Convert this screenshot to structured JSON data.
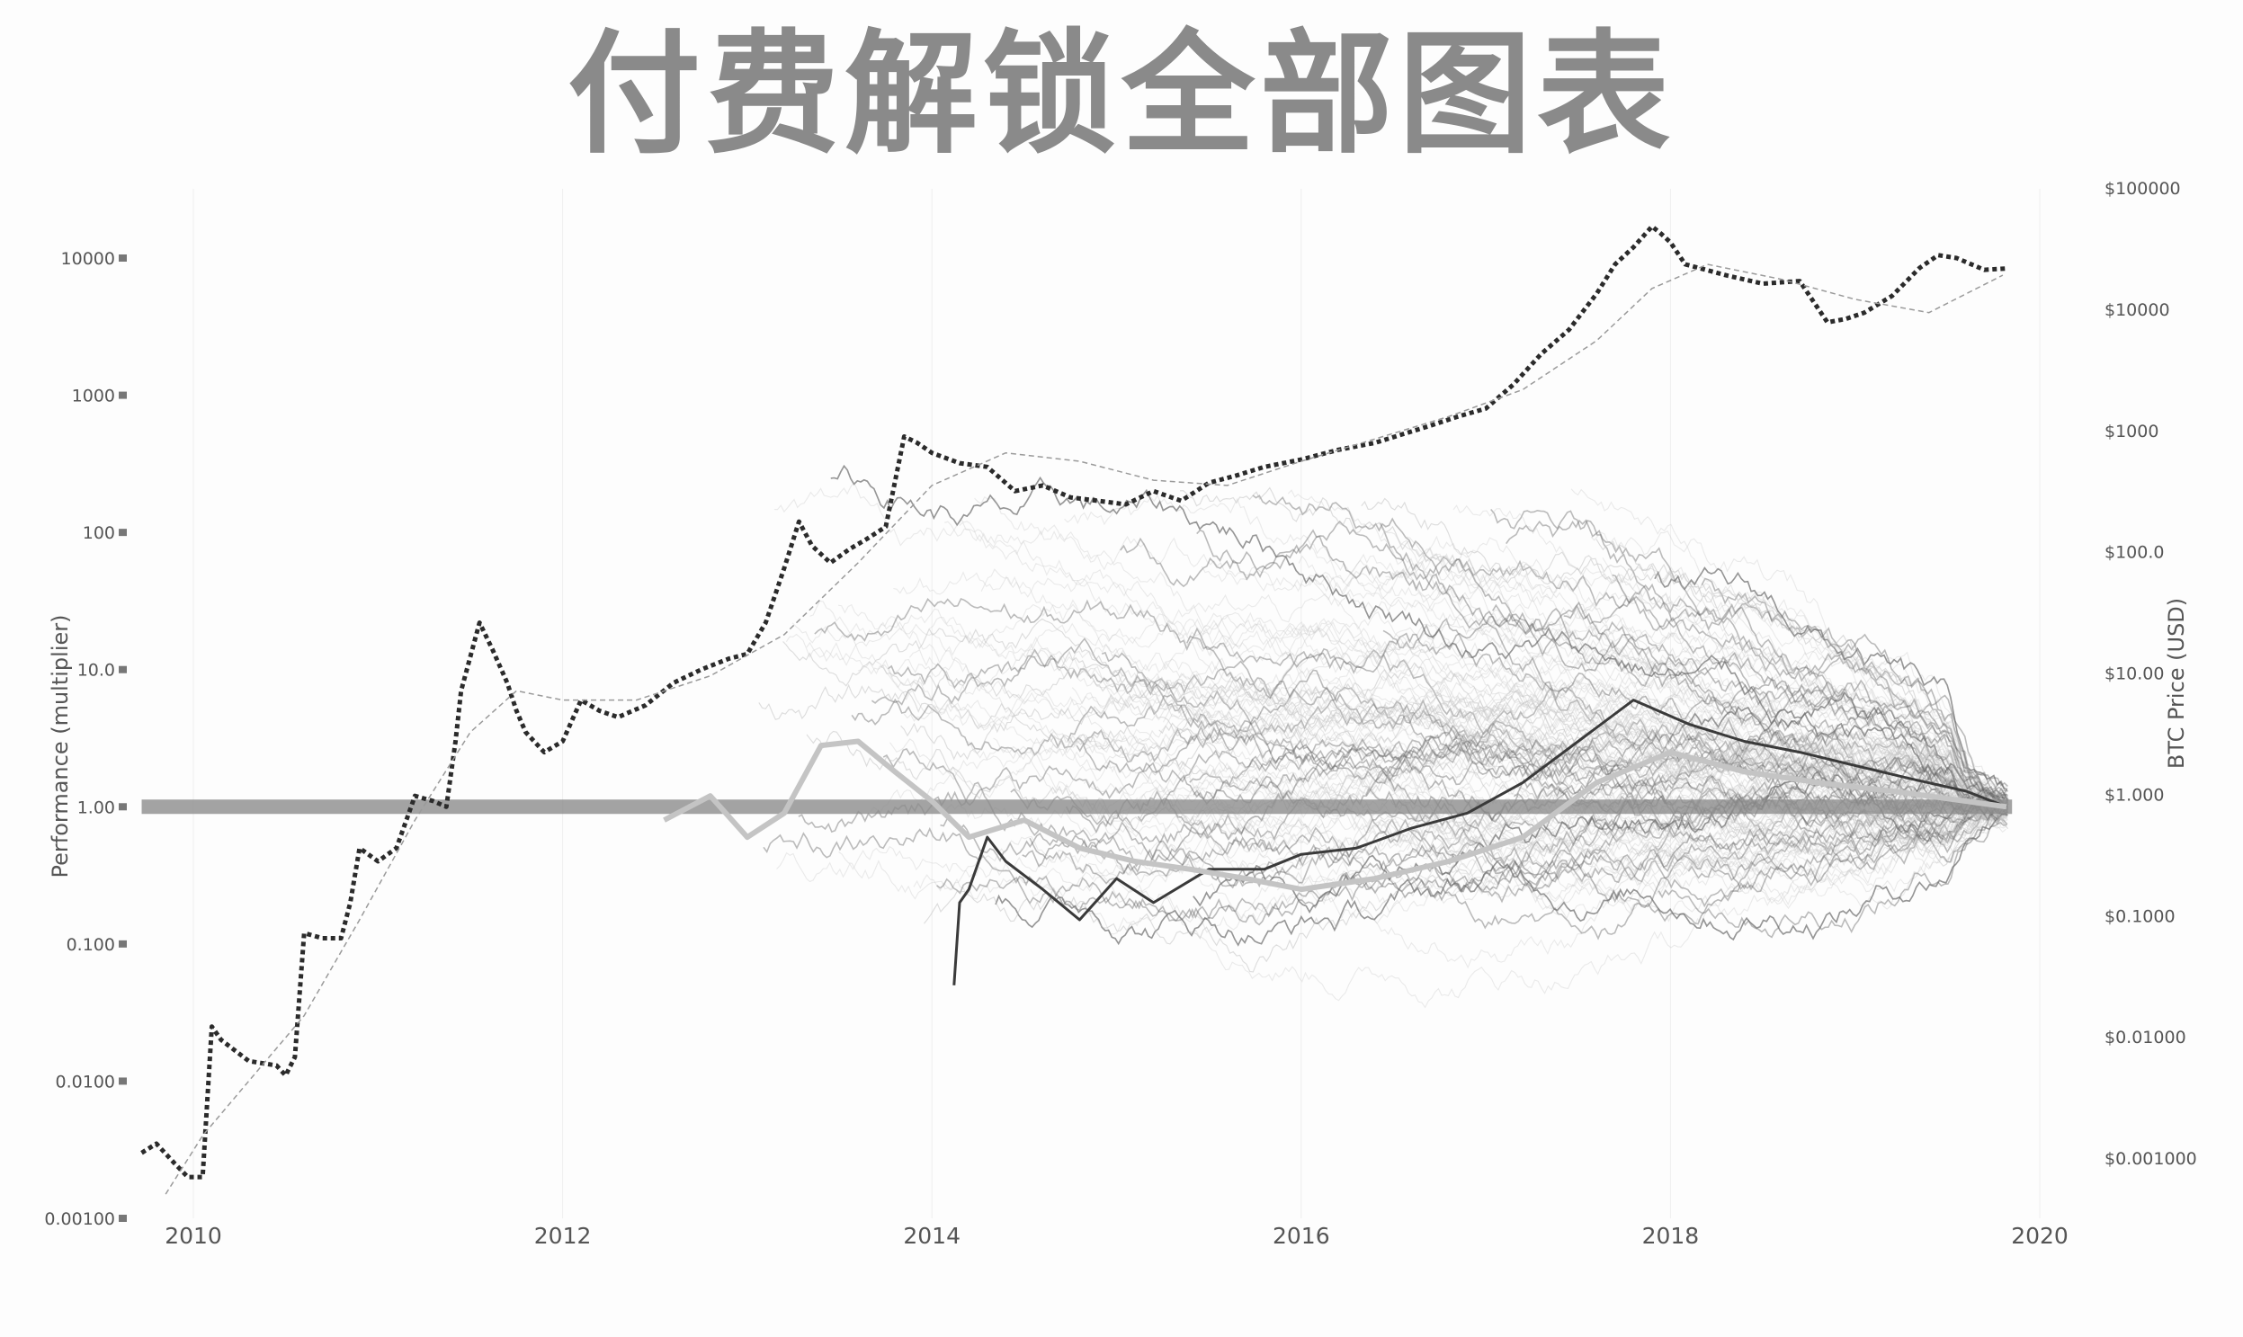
{
  "banner": "付费解锁全部图表",
  "colors": {
    "btc_price": "#2b2b2b",
    "btc_trend": "#9a9a9a",
    "baseline": "#8c8c8c",
    "altcoins_light": "#c6c6c6",
    "altcoins_dark": "#6a6a6a",
    "grid": "#eeeeee"
  },
  "chart_data": {
    "type": "line",
    "title": "",
    "xlabel": "",
    "ylabel": "Performance (multiplier)",
    "y2label": "BTC Price (USD)",
    "x_scale": "time",
    "y_scale": "log",
    "y2_scale": "log",
    "xlim": [
      2009.75,
      2019.9
    ],
    "ylim": [
      0.001,
      30000
    ],
    "y2lim": [
      0.0003,
      100000
    ],
    "grid": true,
    "legend": "none",
    "x_ticks": [
      "2010",
      "2012",
      "2014",
      "2016",
      "2018",
      "2020"
    ],
    "x_tick_values": [
      2010,
      2012,
      2014,
      2016,
      2018,
      2020
    ],
    "y_ticks": [
      "0.00100",
      "0.0100",
      "0.100",
      "1.00",
      "10.0",
      "100",
      "1000",
      "10000"
    ],
    "y_tick_values": [
      0.001,
      0.01,
      0.1,
      1,
      10,
      100,
      1000,
      10000
    ],
    "y2_ticks": [
      "$0.001000",
      "$0.01000",
      "$0.1000",
      "$1.000",
      "$10.00",
      "$100.0",
      "$1000",
      "$10000",
      "$100000"
    ],
    "y2_tick_values": [
      0.001,
      0.01,
      0.1,
      1,
      10,
      100,
      1000,
      10000,
      100000
    ],
    "baseline": {
      "y": 1,
      "x_start": 2009.72,
      "x_end": 2019.85
    },
    "series": [
      {
        "style": "dotted",
        "x": [
          2009.72,
          2009.8,
          2009.9,
          2009.97,
          2010.05,
          2010.1,
          2010.15,
          2010.3,
          2010.45,
          2010.5,
          2010.55,
          2010.6,
          2010.7,
          2010.8,
          2010.85,
          2010.9,
          2011.0,
          2011.1,
          2011.2,
          2011.3,
          2011.37,
          2011.42,
          2011.45,
          2011.55,
          2011.62,
          2011.7,
          2011.75,
          2011.8,
          2011.9,
          2012.0,
          2012.1,
          2012.2,
          2012.3,
          2012.45,
          2012.6,
          2012.75,
          2012.9,
          2013.0,
          2013.1,
          2013.2,
          2013.28,
          2013.35,
          2013.45,
          2013.55,
          2013.65,
          2013.75,
          2013.85,
          2013.92,
          2014.0,
          2014.15,
          2014.3,
          2014.45,
          2014.6,
          2014.75,
          2014.9,
          2015.05,
          2015.2,
          2015.35,
          2015.5,
          2015.65,
          2015.8,
          2016.0,
          2016.2,
          2016.4,
          2016.55,
          2016.7,
          2016.85,
          2017.0,
          2017.15,
          2017.3,
          2017.45,
          2017.6,
          2017.7,
          2017.8,
          2017.9,
          2017.95,
          2018.0,
          2018.08,
          2018.15,
          2018.3,
          2018.5,
          2018.7,
          2018.85,
          2018.95,
          2019.05,
          2019.2,
          2019.35,
          2019.45,
          2019.55,
          2019.7,
          2019.82
        ],
        "y": [
          0.003,
          0.0035,
          0.0025,
          0.002,
          0.002,
          0.025,
          0.02,
          0.014,
          0.013,
          0.011,
          0.015,
          0.12,
          0.11,
          0.11,
          0.2,
          0.5,
          0.4,
          0.5,
          1.2,
          1.1,
          1.0,
          3,
          7,
          22,
          14,
          8,
          5,
          3.5,
          2.5,
          3,
          6,
          5,
          4.5,
          5.5,
          8,
          10,
          12,
          13,
          22,
          55,
          120,
          80,
          60,
          75,
          90,
          110,
          500,
          450,
          380,
          320,
          300,
          200,
          220,
          180,
          170,
          160,
          200,
          170,
          230,
          260,
          300,
          340,
          400,
          450,
          520,
          600,
          700,
          800,
          1200,
          2000,
          3000,
          5500,
          9000,
          12000,
          17000,
          15000,
          13000,
          9000,
          8500,
          7500,
          6500,
          6800,
          3400,
          3600,
          4000,
          5300,
          8500,
          10500,
          10000,
          8200,
          8400
        ]
      },
      {
        "style": "dashed",
        "x": [
          2009.85,
          2010.05,
          2010.3,
          2010.6,
          2010.9,
          2011.2,
          2011.5,
          2011.75,
          2012.0,
          2012.4,
          2012.8,
          2013.2,
          2013.6,
          2014.0,
          2014.4,
          2014.8,
          2015.2,
          2015.6,
          2016.0,
          2016.4,
          2016.8,
          2017.2,
          2017.6,
          2017.9,
          2018.2,
          2018.6,
          2019.0,
          2019.4,
          2019.8
        ],
        "y": [
          0.0015,
          0.004,
          0.01,
          0.03,
          0.15,
          0.8,
          3.5,
          7,
          6,
          6,
          9,
          18,
          60,
          220,
          380,
          330,
          240,
          220,
          330,
          480,
          700,
          1100,
          2500,
          6000,
          9000,
          7000,
          5000,
          4000,
          7500
        ]
      },
      {
        "style": "solid-dark",
        "x": [
          2014.12,
          2014.15,
          2014.2,
          2014.3,
          2014.4,
          2014.6,
          2014.8,
          2015.0,
          2015.2,
          2015.5,
          2015.8,
          2016.0,
          2016.3,
          2016.6,
          2016.9,
          2017.2,
          2017.5,
          2017.8,
          2018.1,
          2018.4,
          2018.7,
          2019.0,
          2019.3,
          2019.6,
          2019.82
        ],
        "y": [
          0.05,
          0.2,
          0.25,
          0.6,
          0.4,
          0.25,
          0.15,
          0.3,
          0.2,
          0.35,
          0.35,
          0.45,
          0.5,
          0.7,
          0.9,
          1.5,
          3,
          6,
          4,
          3,
          2.5,
          2,
          1.6,
          1.3,
          1.0
        ]
      },
      {
        "style": "solid-light-thick",
        "x": [
          2012.55,
          2012.8,
          2013.0,
          2013.2,
          2013.4,
          2013.6,
          2013.8,
          2014.0,
          2014.2,
          2014.5,
          2014.8,
          2015.1,
          2015.4,
          2015.7,
          2016.0,
          2016.4,
          2016.8,
          2017.2,
          2017.6,
          2018.0,
          2018.4,
          2018.8,
          2019.2,
          2019.6,
          2019.82
        ],
        "y": [
          0.8,
          1.2,
          0.6,
          0.9,
          2.8,
          3,
          1.8,
          1.1,
          0.6,
          0.8,
          0.5,
          0.4,
          0.35,
          0.3,
          0.25,
          0.3,
          0.4,
          0.6,
          1.5,
          2.5,
          1.8,
          1.5,
          1.3,
          1.1,
          1.0
        ]
      }
    ]
  }
}
